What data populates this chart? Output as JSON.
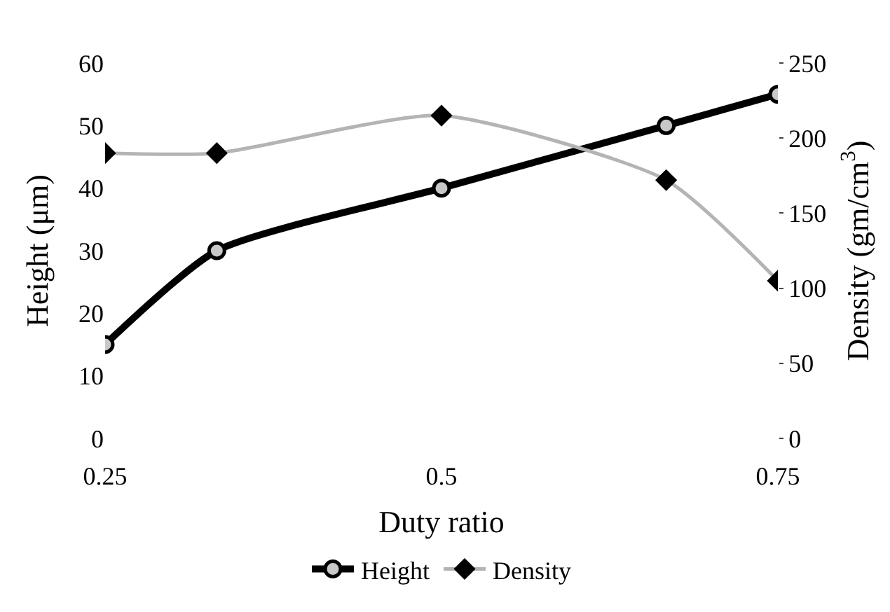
{
  "chart_data": {
    "type": "line",
    "xlabel": "Duty ratio",
    "ylabel": "Height (μm)",
    "y2label": "Density (gm/cm$^{3}$)",
    "x": [
      0.25,
      0.333,
      0.5,
      0.667,
      0.75
    ],
    "xlim": [
      0.25,
      0.75
    ],
    "xticks": [
      0.25,
      0.5,
      0.75
    ],
    "ylim": [
      0,
      60
    ],
    "yticks": [
      0,
      10,
      20,
      30,
      40,
      50,
      60
    ],
    "y2lim": [
      0,
      250
    ],
    "y2ticks": [
      0,
      50,
      100,
      150,
      200,
      250
    ],
    "legend": "bottom",
    "series": [
      {
        "name": "Height",
        "color": "#000000",
        "marker": "circle",
        "line_style": "solid",
        "values": [
          15,
          30,
          40,
          50,
          55
        ]
      },
      {
        "name": "Density",
        "color": "#b4b4b4",
        "marker": "diamond",
        "line_style": "solid",
        "axis": "y2",
        "values": [
          190,
          190,
          215,
          172,
          105
        ]
      }
    ]
  }
}
